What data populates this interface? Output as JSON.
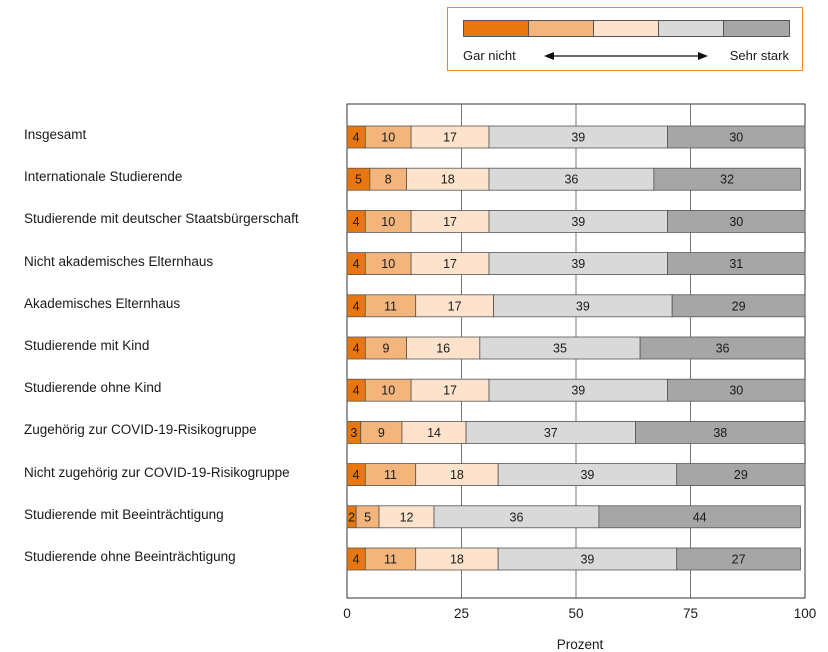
{
  "legend": {
    "left_label": "Gar nicht",
    "right_label": "Sehr stark",
    "colors": [
      "#e8770f",
      "#f4b57c",
      "#fde3cc",
      "#d9d9d9",
      "#a6a6a6"
    ]
  },
  "chart_data": {
    "type": "bar",
    "orientation": "horizontal-stacked",
    "xlabel": "Prozent",
    "xlim": [
      0,
      100
    ],
    "xticks": [
      "0",
      "25",
      "50",
      "75",
      "100"
    ],
    "categories": [
      "Insgesamt",
      "Internationale Studierende",
      "Studierende mit deutscher Staatsbürgerschaft",
      "Nicht akademisches Elternhaus",
      "Akademisches Elternhaus",
      "Studierende mit Kind",
      "Studierende ohne Kind",
      "Zugehörig zur COVID-19-Risikogruppe",
      "Nicht zugehörig zur COVID-19-Risikogruppe",
      "Studierende mit Beeinträchtigung",
      "Studierende ohne Beeinträchtigung"
    ],
    "values": [
      [
        4,
        10,
        17,
        39,
        30
      ],
      [
        5,
        8,
        18,
        36,
        32
      ],
      [
        4,
        10,
        17,
        39,
        30
      ],
      [
        4,
        10,
        17,
        39,
        31
      ],
      [
        4,
        11,
        17,
        39,
        29
      ],
      [
        4,
        9,
        16,
        35,
        36
      ],
      [
        4,
        10,
        17,
        39,
        30
      ],
      [
        3,
        9,
        14,
        37,
        38
      ],
      [
        4,
        11,
        18,
        39,
        29
      ],
      [
        2,
        5,
        12,
        36,
        44
      ],
      [
        4,
        11,
        18,
        39,
        27
      ]
    ],
    "grid": true
  }
}
